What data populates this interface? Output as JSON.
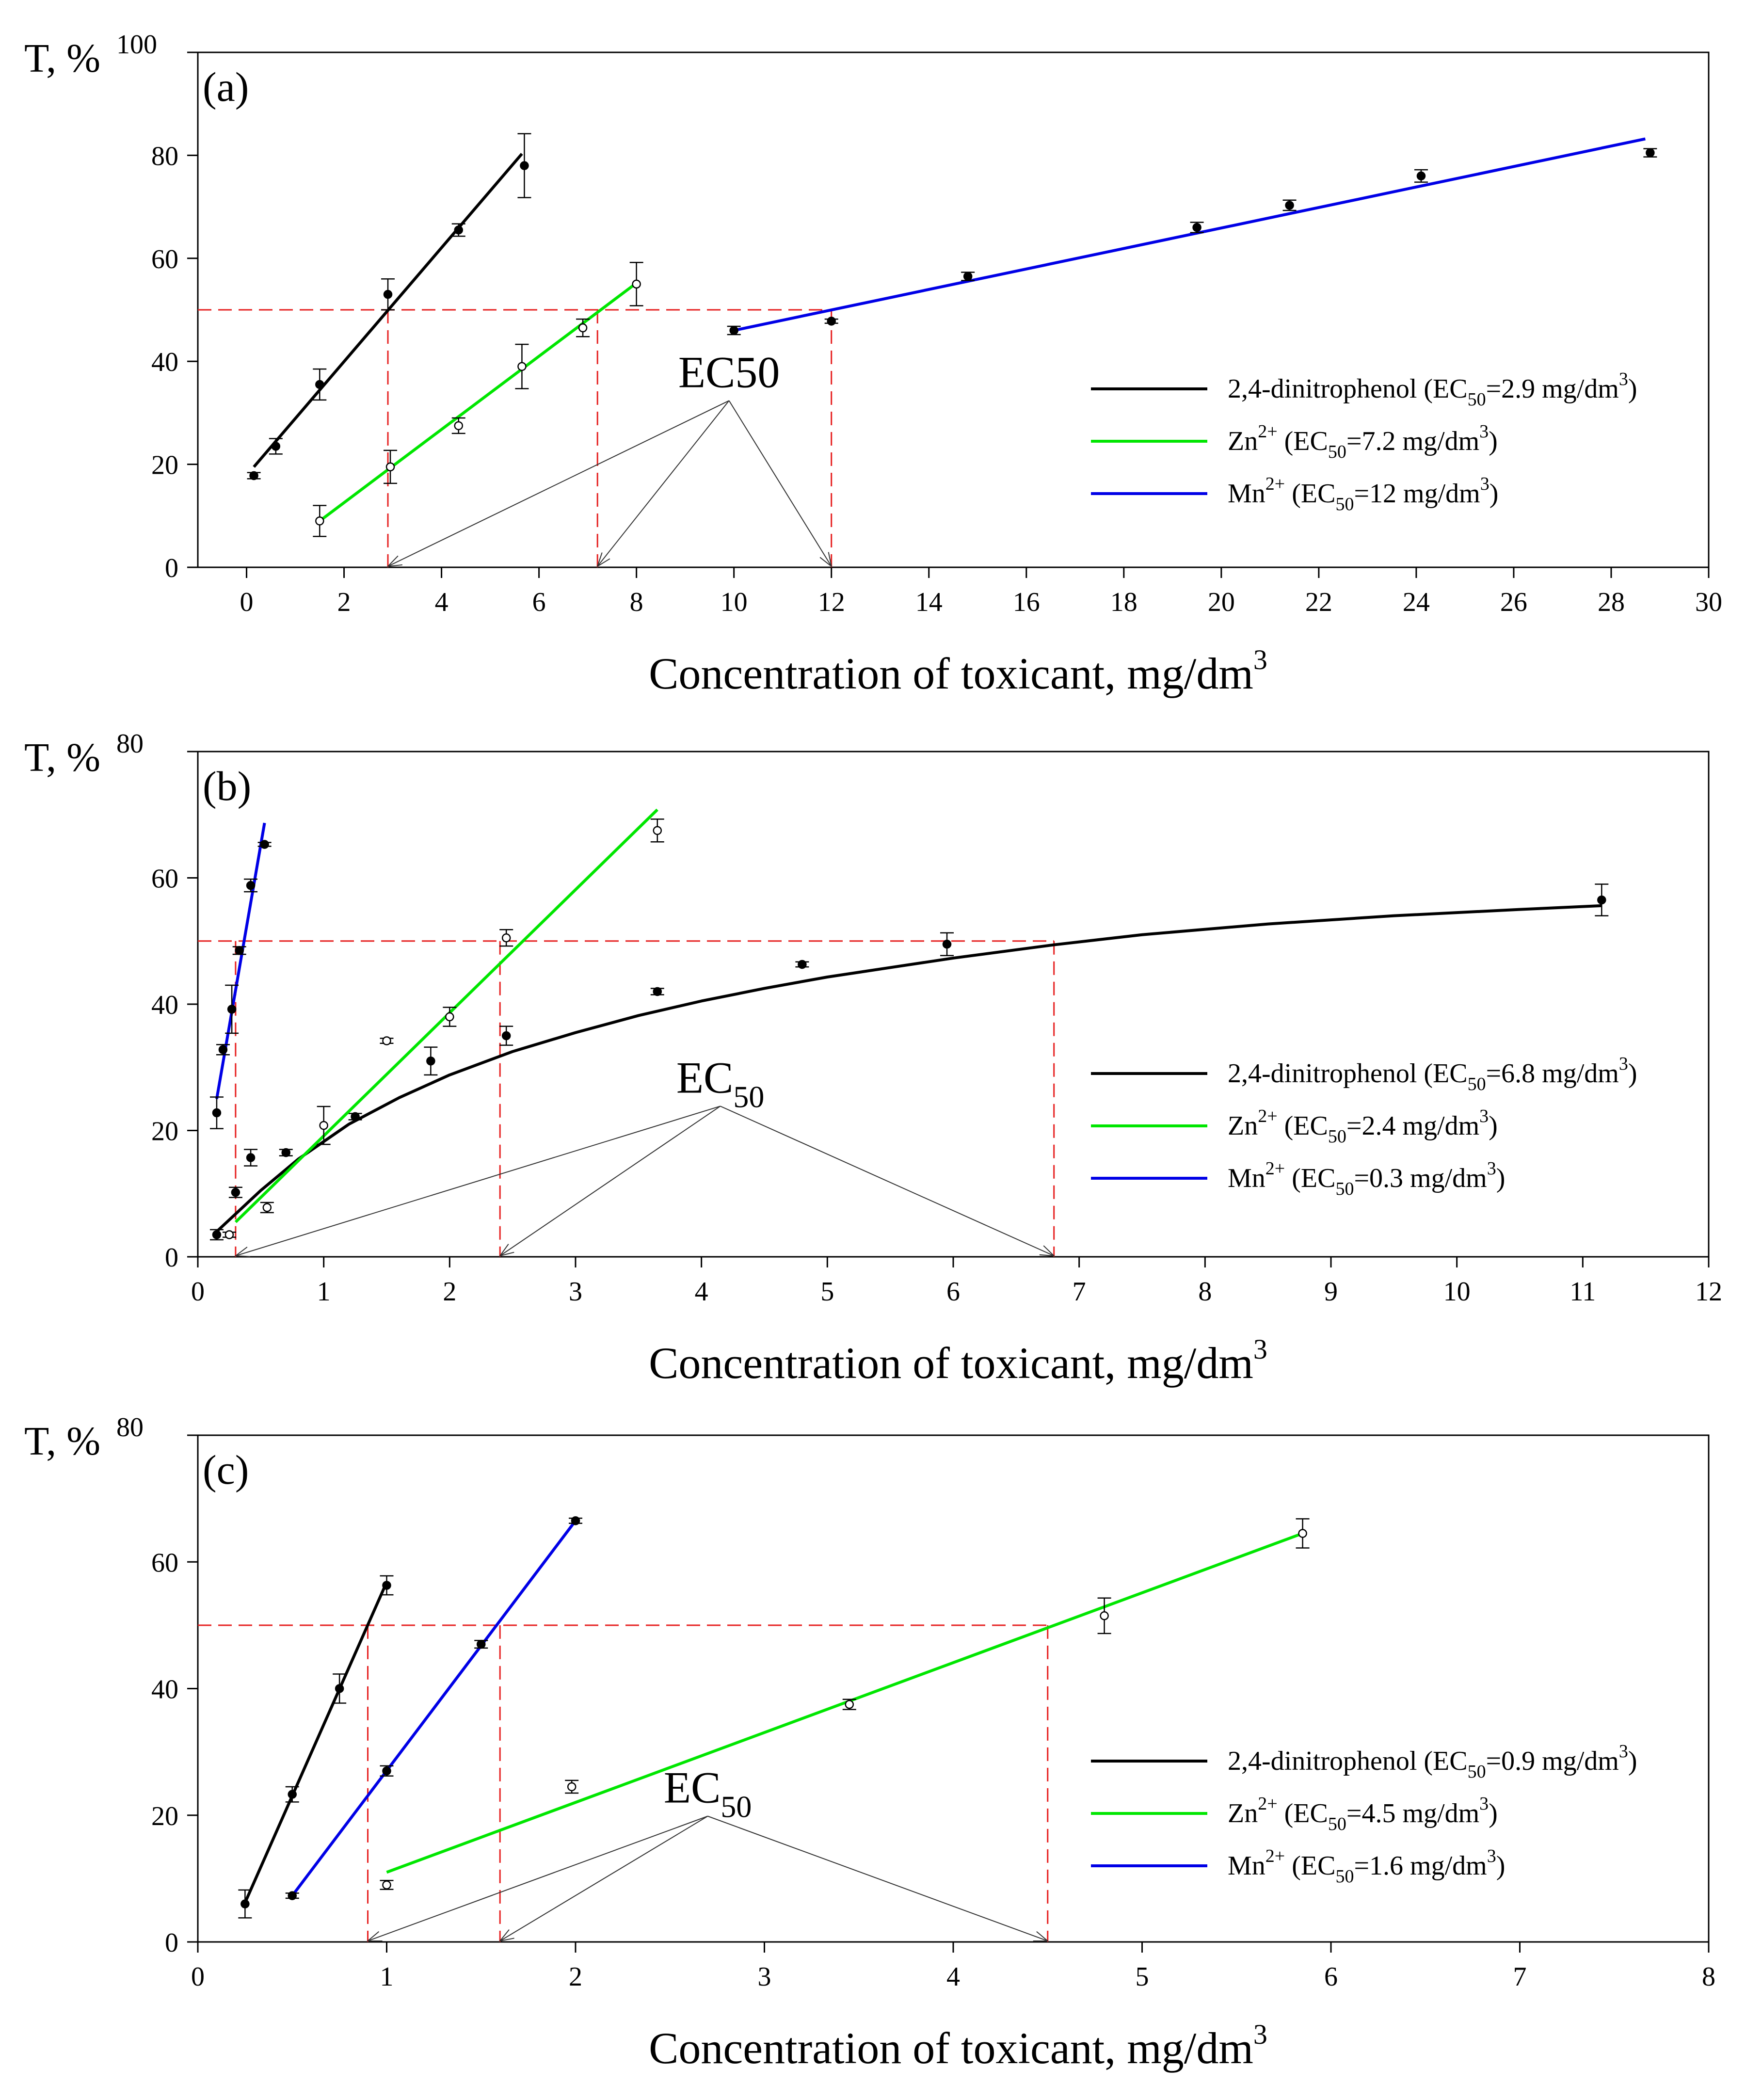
{
  "figure": {
    "xlabel_main": "Concentration of toxicant, mg/dm",
    "xlabel_sup": "3",
    "ylabel": "T, %"
  },
  "chart_data": [
    {
      "type": "line",
      "panel_label": "(a)",
      "ylabel": "T, %",
      "xlabel": "Concentration of toxicant, mg/dm3",
      "xlim": [
        -1,
        30
      ],
      "ylim": [
        0,
        100
      ],
      "xticks": [
        0,
        2,
        4,
        6,
        8,
        10,
        12,
        14,
        16,
        18,
        20,
        22,
        24,
        26,
        28,
        30
      ],
      "yticks": [
        0,
        20,
        40,
        60,
        80,
        100
      ],
      "threshold": 50,
      "ec50_label": {
        "main": "EC50",
        "sub": ""
      },
      "ec50_label_at": [
        9.9,
        35
      ],
      "series": [
        {
          "name": "2,4-dinitrophenol",
          "legend_text": "2,4-dinitrophenol (EC",
          "legend_sub": "50",
          "legend_value": "=2.9 mg/dm",
          "legend_sup": "3",
          "legend_end": ")",
          "color": "#000000",
          "marker": "filled",
          "ec50": 2.9,
          "points": [
            {
              "x": 0.15,
              "y": 17.8,
              "err": 0.6
            },
            {
              "x": 0.6,
              "y": 23.5,
              "err": 1.5
            },
            {
              "x": 1.5,
              "y": 35.5,
              "err": 3.0
            },
            {
              "x": 2.9,
              "y": 53,
              "err": 3.0
            },
            {
              "x": 4.35,
              "y": 65.5,
              "err": 1.2
            },
            {
              "x": 5.7,
              "y": 78,
              "err": 6.2
            }
          ],
          "fit": [
            [
              0.15,
              19.5
            ],
            [
              5.65,
              80.3
            ]
          ]
        },
        {
          "name": "Zn2+",
          "legend_text": "Zn",
          "legend_super": "2+",
          "legend_text2": " (EC",
          "legend_sub": "50",
          "legend_value": "=7.2 mg/dm",
          "legend_sup": "3",
          "legend_end": ")",
          "color": "#00e600",
          "marker": "open",
          "ec50": 7.2,
          "points": [
            {
              "x": 1.5,
              "y": 9,
              "err": 3.0
            },
            {
              "x": 2.95,
              "y": 19.5,
              "err": 3.2
            },
            {
              "x": 4.35,
              "y": 27.5,
              "err": 1.5
            },
            {
              "x": 5.65,
              "y": 39,
              "err": 4.3
            },
            {
              "x": 6.9,
              "y": 46.5,
              "err": 1.7
            },
            {
              "x": 8.0,
              "y": 55,
              "err": 4.2
            }
          ],
          "fit": [
            [
              1.5,
              9
            ],
            [
              8.0,
              55.2
            ]
          ]
        },
        {
          "name": "Mn2+",
          "legend_text": "Mn",
          "legend_super": "2+",
          "legend_text2": " (EC",
          "legend_sub": "50",
          "legend_value": "=12 mg/dm",
          "legend_sup": "3",
          "legend_end": ")",
          "color": "#0000e6",
          "marker": "filled",
          "ec50": 12,
          "points": [
            {
              "x": 10.0,
              "y": 46,
              "err": 0.8
            },
            {
              "x": 12.0,
              "y": 47.8,
              "err": 0.4
            },
            {
              "x": 14.8,
              "y": 56.5,
              "err": 0.8
            },
            {
              "x": 19.5,
              "y": 66,
              "err": 1.0
            },
            {
              "x": 21.4,
              "y": 70.3,
              "err": 1.0
            },
            {
              "x": 24.1,
              "y": 76,
              "err": 1.2
            },
            {
              "x": 28.8,
              "y": 80.5,
              "err": 0.8
            }
          ],
          "fit": [
            [
              10.0,
              46
            ],
            [
              28.7,
              83.2
            ]
          ]
        }
      ]
    },
    {
      "type": "line",
      "panel_label": "(b)",
      "ylabel": "T, %",
      "xlabel": "Concentration of toxicant, mg/dm3",
      "xlim": [
        0,
        12
      ],
      "ylim": [
        0,
        80
      ],
      "xticks": [
        0,
        1,
        2,
        3,
        4,
        5,
        6,
        7,
        8,
        9,
        10,
        11,
        12
      ],
      "yticks": [
        0,
        20,
        40,
        60,
        80
      ],
      "threshold": 50,
      "ec50_label": {
        "main": "EC",
        "sub": "50"
      },
      "ec50_label_at": [
        4.15,
        26
      ],
      "series": [
        {
          "name": "2,4-dinitrophenol",
          "legend_text": "2,4-dinitrophenol (EC",
          "legend_sub": "50",
          "legend_value": "=6.8 mg/dm",
          "legend_sup": "3",
          "legend_end": ")",
          "color": "#000000",
          "marker": "filled",
          "ec50": 6.8,
          "points": [
            {
              "x": 0.15,
              "y": 3.5,
              "err": 0.8
            },
            {
              "x": 0.3,
              "y": 10.2,
              "err": 0.8
            },
            {
              "x": 0.42,
              "y": 15.7,
              "err": 1.3
            },
            {
              "x": 0.7,
              "y": 16.5,
              "err": 0.5
            },
            {
              "x": 1.25,
              "y": 22.2,
              "err": 0.5
            },
            {
              "x": 1.85,
              "y": 31,
              "err": 2.2
            },
            {
              "x": 2.45,
              "y": 35,
              "err": 1.5
            },
            {
              "x": 3.65,
              "y": 42,
              "err": 0.5
            },
            {
              "x": 4.8,
              "y": 46.3,
              "err": 0.4
            },
            {
              "x": 5.95,
              "y": 49.5,
              "err": 1.8
            },
            {
              "x": 11.15,
              "y": 56.5,
              "err": 2.5
            }
          ],
          "fit": [
            [
              0.15,
              4
            ],
            [
              0.5,
              10.5
            ],
            [
              0.8,
              15.5
            ],
            [
              1.2,
              21
            ],
            [
              1.6,
              25.2
            ],
            [
              2.0,
              28.8
            ],
            [
              2.5,
              32.5
            ],
            [
              3.0,
              35.5
            ],
            [
              3.5,
              38.2
            ],
            [
              4.0,
              40.5
            ],
            [
              4.5,
              42.5
            ],
            [
              5.0,
              44.3
            ],
            [
              5.5,
              45.8
            ],
            [
              6.0,
              47.3
            ],
            [
              6.8,
              49.4
            ],
            [
              7.5,
              51
            ],
            [
              8.5,
              52.7
            ],
            [
              9.5,
              54
            ],
            [
              10.5,
              55
            ],
            [
              11.15,
              55.6
            ]
          ]
        },
        {
          "name": "Zn2+",
          "legend_text": "Zn",
          "legend_super": "2+",
          "legend_text2": " (EC",
          "legend_sub": "50",
          "legend_value": "=2.4 mg/dm",
          "legend_sup": "3",
          "legend_end": ")",
          "color": "#00e600",
          "marker": "open",
          "ec50": 2.4,
          "points": [
            {
              "x": 0.25,
              "y": 3.5,
              "err": 0.4
            },
            {
              "x": 0.55,
              "y": 7.8,
              "err": 0.8
            },
            {
              "x": 1.0,
              "y": 20.8,
              "err": 3.0
            },
            {
              "x": 1.5,
              "y": 34.2,
              "err": 0.4
            },
            {
              "x": 2.0,
              "y": 38,
              "err": 1.5
            },
            {
              "x": 2.45,
              "y": 50.5,
              "err": 1.3
            },
            {
              "x": 3.65,
              "y": 67.5,
              "err": 1.8
            }
          ],
          "fit": [
            [
              0.3,
              5.5
            ],
            [
              3.65,
              70.8
            ]
          ]
        },
        {
          "name": "Mn2+",
          "legend_text": "Mn",
          "legend_super": "2+",
          "legend_text2": " (EC",
          "legend_sub": "50",
          "legend_value": "=0.3 mg/dm",
          "legend_sup": "3",
          "legend_end": ")",
          "color": "#0000e6",
          "marker": "filled",
          "ec50": 0.3,
          "points": [
            {
              "x": 0.15,
              "y": 22.8,
              "err": 2.5
            },
            {
              "x": 0.2,
              "y": 32.8,
              "err": 0.8
            },
            {
              "x": 0.27,
              "y": 39.2,
              "err": 3.8
            },
            {
              "x": 0.33,
              "y": 48.5,
              "err": 0.6
            },
            {
              "x": 0.42,
              "y": 58.8,
              "err": 1.0
            },
            {
              "x": 0.53,
              "y": 65.3,
              "err": 0.3
            }
          ],
          "fit": [
            [
              0.15,
              25
            ],
            [
              0.53,
              68.7
            ]
          ]
        }
      ]
    },
    {
      "type": "line",
      "panel_label": "(c)",
      "ylabel": "T, %",
      "xlabel": "Concentration of toxicant, mg/dm3",
      "xlim": [
        0,
        8
      ],
      "ylim": [
        0,
        80
      ],
      "xticks": [
        0,
        1,
        2,
        3,
        4,
        5,
        6,
        7,
        8
      ],
      "yticks": [
        0,
        20,
        40,
        60,
        80
      ],
      "threshold": 50,
      "ec50_label": {
        "main": "EC",
        "sub": "50"
      },
      "ec50_label_at": [
        2.7,
        22
      ],
      "series": [
        {
          "name": "2,4-dinitrophenol",
          "legend_text": "2,4-dinitrophenol (EC",
          "legend_sub": "50",
          "legend_value": "=0.9 mg/dm",
          "legend_sup": "3",
          "legend_end": ")",
          "color": "#000000",
          "marker": "filled",
          "ec50": 0.9,
          "points": [
            {
              "x": 0.25,
              "y": 6,
              "err": 2.2
            },
            {
              "x": 0.5,
              "y": 23.3,
              "err": 1.2
            },
            {
              "x": 0.75,
              "y": 40,
              "err": 2.3
            },
            {
              "x": 1.0,
              "y": 56.3,
              "err": 1.5
            }
          ],
          "fit": [
            [
              0.25,
              6.2
            ],
            [
              1.0,
              56.8
            ]
          ]
        },
        {
          "name": "Zn2+",
          "legend_text": "Zn",
          "legend_super": "2+",
          "legend_text2": " (EC",
          "legend_sub": "50",
          "legend_value": "=4.5 mg/dm",
          "legend_sup": "3",
          "legend_end": ")",
          "color": "#00e600",
          "marker": "open",
          "ec50": 4.5,
          "points": [
            {
              "x": 1.0,
              "y": 9,
              "err": 0.7
            },
            {
              "x": 1.98,
              "y": 24.5,
              "err": 1.0
            },
            {
              "x": 3.45,
              "y": 37.5,
              "err": 0.8
            },
            {
              "x": 4.8,
              "y": 51.5,
              "err": 2.8
            },
            {
              "x": 5.85,
              "y": 64.5,
              "err": 2.3
            }
          ],
          "fit": [
            [
              1.0,
              11
            ],
            [
              5.85,
              64.5
            ]
          ]
        },
        {
          "name": "Mn2+",
          "legend_text": "Mn",
          "legend_super": "2+",
          "legend_text2": " (EC",
          "legend_sub": "50",
          "legend_value": "=1.6 mg/dm",
          "legend_sup": "3",
          "legend_end": ")",
          "color": "#0000e6",
          "marker": "filled",
          "ec50": 1.6,
          "points": [
            {
              "x": 0.5,
              "y": 7.3,
              "err": 0.4
            },
            {
              "x": 1.0,
              "y": 27,
              "err": 0.8
            },
            {
              "x": 1.5,
              "y": 47,
              "err": 0.6
            },
            {
              "x": 2.0,
              "y": 66.5,
              "err": 0.4
            }
          ],
          "fit": [
            [
              0.5,
              7.3
            ],
            [
              2.0,
              66.5
            ]
          ]
        }
      ]
    }
  ]
}
